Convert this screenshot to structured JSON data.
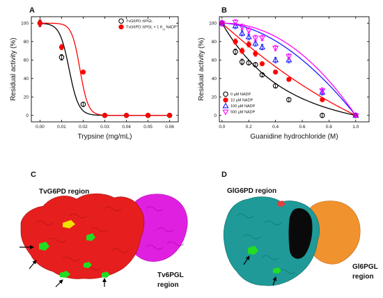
{
  "panels": {
    "A": {
      "letter": "A"
    },
    "B": {
      "letter": "B"
    },
    "C": {
      "letter": "C",
      "region_top": "TvG6PD region",
      "region_side_line1": "Tv6PGL",
      "region_side_line2": "region"
    },
    "D": {
      "letter": "D",
      "region_top": "GlG6PD region",
      "region_side_line1": "Gl6PGL",
      "region_side_line2": "region"
    }
  },
  "chart_data": [
    {
      "panel": "A",
      "type": "scatter",
      "xlabel": "Trypsine (mg/mL)",
      "ylabel": "Residual activity (%)",
      "xlim": [
        -0.004,
        0.064
      ],
      "ylim": [
        -7,
        107
      ],
      "x_ticks": [
        "0.00",
        "0.01",
        "0.02",
        "0.03",
        "0.04",
        "0.05",
        "0.06"
      ],
      "y_ticks": [
        "0",
        "20",
        "40",
        "60",
        "80",
        "100"
      ],
      "legend_position": "top-right",
      "series": [
        {
          "name": "TvG6PD::6PGL",
          "marker": "open-circle",
          "color": "#000000",
          "points": [
            [
              0.0,
              100
            ],
            [
              0.01,
              63
            ],
            [
              0.02,
              12
            ],
            [
              0.03,
              0
            ],
            [
              0.04,
              0
            ],
            [
              0.05,
              0
            ],
            [
              0.06,
              0
            ]
          ],
          "errors": [
            3,
            3,
            2,
            0,
            0,
            0,
            0
          ],
          "fit": {
            "model": "sigmoid",
            "top": 100,
            "midpoint": 0.0135,
            "slope": 0.0022
          }
        },
        {
          "name": "TvG6PD::6PGL + 1 K",
          "name_subscript": "m",
          "name_suffix": " NADP",
          "name_superscript": "+",
          "marker": "filled-circle",
          "color": "#ff0000",
          "points": [
            [
              0.0,
              100
            ],
            [
              0.01,
              74
            ],
            [
              0.02,
              47
            ],
            [
              0.03,
              0
            ],
            [
              0.04,
              0
            ],
            [
              0.05,
              0
            ],
            [
              0.06,
              0
            ]
          ],
          "errors": [
            4,
            3,
            2,
            0,
            0,
            0,
            0
          ],
          "fit": {
            "model": "sigmoid",
            "top": 100,
            "midpoint": 0.0185,
            "slope": 0.0019
          }
        }
      ]
    },
    {
      "panel": "B",
      "type": "scatter",
      "xlabel": "Guanidine hydrochloride (M)",
      "ylabel": "Residual activity (%)",
      "xlim": [
        -0.02,
        1.1
      ],
      "ylim": [
        -7,
        107
      ],
      "x_ticks": [
        "0.0",
        "0.2",
        "0.4",
        "0.6",
        "0.8",
        "1.0"
      ],
      "y_ticks": [
        "0",
        "20",
        "40",
        "60",
        "80",
        "100"
      ],
      "legend_position": "bottom-left",
      "series": [
        {
          "name": "0 µM NADP",
          "marker": "open-circle",
          "color": "#000000",
          "points": [
            [
              0.0,
              100
            ],
            [
              0.1,
              69
            ],
            [
              0.15,
              58
            ],
            [
              0.2,
              57
            ],
            [
              0.25,
              55
            ],
            [
              0.3,
              44
            ],
            [
              0.4,
              32
            ],
            [
              0.5,
              17
            ],
            [
              0.75,
              0
            ],
            [
              1.0,
              0
            ]
          ],
          "errors": [
            3,
            3,
            3,
            2,
            2,
            2,
            2,
            2,
            2,
            2
          ],
          "fit": {
            "model": "exp",
            "k": 2.4
          }
        },
        {
          "name": "10 µM NADP",
          "marker": "filled-circle",
          "color": "#ff0000",
          "points": [
            [
              0.0,
              100
            ],
            [
              0.1,
              80
            ],
            [
              0.15,
              70
            ],
            [
              0.2,
              77
            ],
            [
              0.25,
              67
            ],
            [
              0.3,
              56
            ],
            [
              0.4,
              47
            ],
            [
              0.5,
              39
            ],
            [
              0.75,
              17
            ],
            [
              1.0,
              0
            ]
          ],
          "errors": [
            3,
            3,
            3,
            3,
            3,
            2,
            2,
            2,
            2,
            2
          ],
          "fit": {
            "model": "poly",
            "a": 1.3,
            "b": 0.3
          }
        },
        {
          "name": "100 µM NADP",
          "marker": "open-triangle",
          "color": "#1a1aff",
          "points": [
            [
              0.0,
              100
            ],
            [
              0.1,
              97
            ],
            [
              0.15,
              89
            ],
            [
              0.2,
              85
            ],
            [
              0.25,
              78
            ],
            [
              0.3,
              74
            ],
            [
              0.4,
              60
            ],
            [
              0.5,
              60
            ],
            [
              0.75,
              25
            ],
            [
              1.0,
              0
            ]
          ],
          "errors": [
            3,
            3,
            3,
            3,
            3,
            3,
            3,
            3,
            3,
            2
          ],
          "fit": {
            "model": "power",
            "p": 1.8
          }
        },
        {
          "name": "500 µM NADP",
          "marker": "open-inverted-triangle",
          "color": "#ff00ff",
          "points": [
            [
              0.0,
              100
            ],
            [
              0.1,
              101
            ],
            [
              0.15,
              96
            ],
            [
              0.2,
              92
            ],
            [
              0.25,
              84
            ],
            [
              0.3,
              84
            ],
            [
              0.4,
              73
            ],
            [
              0.5,
              64
            ],
            [
              0.75,
              27
            ],
            [
              1.0,
              0
            ]
          ],
          "errors": [
            3,
            3,
            3,
            3,
            3,
            3,
            3,
            3,
            3,
            2
          ],
          "fit": {
            "model": "power",
            "p": 2.1
          }
        }
      ]
    }
  ]
}
